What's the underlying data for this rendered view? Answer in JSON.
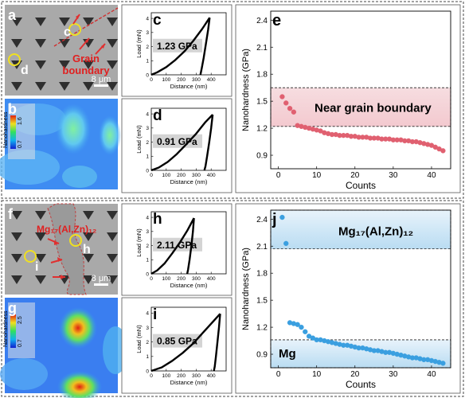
{
  "panels": {
    "a": "a",
    "b": "b",
    "c": "c",
    "d": "d",
    "e": "e",
    "f": "f",
    "g": "g",
    "h": "h",
    "i": "i",
    "j": "j"
  },
  "micro_top": {
    "markers": [
      "c",
      "d"
    ],
    "grain_label_1": "Grain",
    "grain_label_2": "boundary",
    "scale": "8 μm"
  },
  "micro_bottom": {
    "phase_label": "Mg₁₇(Al,Zn)₁₂",
    "markers": [
      "h",
      "i"
    ],
    "scale": "8 μm"
  },
  "maps": {
    "colorbar_label": "Nanohardness",
    "top": {
      "min": "0.7",
      "max": "1.6"
    },
    "bottom": {
      "min": "0.7",
      "max": "2.5"
    }
  },
  "load_curves": {
    "xlabel": "Distance (nm)",
    "ylabel": "Load (mN)",
    "xticks": [
      0,
      100,
      200,
      300,
      400
    ],
    "yticks": [
      0,
      1,
      2,
      3,
      4
    ]
  },
  "chart_data": [
    {
      "type": "line",
      "panel": "c",
      "label": "1.23 GPa",
      "xlim": [
        0,
        500
      ],
      "ylim": [
        0,
        4.4
      ],
      "loading": [
        [
          0,
          0
        ],
        [
          40,
          0.18
        ],
        [
          100,
          0.55
        ],
        [
          160,
          1.05
        ],
        [
          220,
          1.65
        ],
        [
          280,
          2.4
        ],
        [
          340,
          3.25
        ],
        [
          390,
          4.05
        ]
      ],
      "unloading": [
        [
          390,
          4.05
        ],
        [
          380,
          3.2
        ],
        [
          365,
          2.2
        ],
        [
          350,
          1.2
        ],
        [
          338,
          0.5
        ],
        [
          328,
          0
        ]
      ]
    },
    {
      "type": "line",
      "panel": "d",
      "label": "0.91 GPa",
      "xlim": [
        0,
        500
      ],
      "ylim": [
        0,
        4.4
      ],
      "loading": [
        [
          0,
          0
        ],
        [
          50,
          0.2
        ],
        [
          110,
          0.6
        ],
        [
          170,
          1.15
        ],
        [
          230,
          1.8
        ],
        [
          300,
          2.6
        ],
        [
          360,
          3.4
        ],
        [
          410,
          3.95
        ]
      ],
      "unloading": [
        [
          410,
          3.95
        ],
        [
          400,
          3.0
        ],
        [
          387,
          2.0
        ],
        [
          373,
          1.0
        ],
        [
          362,
          0.3
        ],
        [
          355,
          0
        ]
      ]
    },
    {
      "type": "line",
      "panel": "h",
      "label": "2.11 GPa",
      "xlim": [
        0,
        500
      ],
      "ylim": [
        0,
        4.4
      ],
      "loading": [
        [
          0,
          0
        ],
        [
          40,
          0.25
        ],
        [
          90,
          0.75
        ],
        [
          140,
          1.45
        ],
        [
          190,
          2.2
        ],
        [
          240,
          3.05
        ],
        [
          285,
          3.95
        ]
      ],
      "unloading": [
        [
          285,
          3.95
        ],
        [
          278,
          3.0
        ],
        [
          268,
          2.0
        ],
        [
          256,
          1.0
        ],
        [
          246,
          0.3
        ],
        [
          240,
          0
        ]
      ]
    },
    {
      "type": "line",
      "panel": "i",
      "label": "0.85 GPa",
      "xlim": [
        0,
        500
      ],
      "ylim": [
        0,
        4.4
      ],
      "loading": [
        [
          0,
          0
        ],
        [
          70,
          0.25
        ],
        [
          140,
          0.7
        ],
        [
          210,
          1.25
        ],
        [
          280,
          1.9
        ],
        [
          350,
          2.7
        ],
        [
          420,
          3.5
        ],
        [
          460,
          3.95
        ]
      ],
      "unloading": [
        [
          460,
          3.95
        ],
        [
          452,
          3.0
        ],
        [
          442,
          2.0
        ],
        [
          432,
          1.0
        ],
        [
          424,
          0.3
        ],
        [
          418,
          0
        ]
      ]
    },
    {
      "type": "scatter",
      "panel": "e",
      "xlabel": "Counts",
      "ylabel": "Nanohardness (GPa)",
      "xlim": [
        -2,
        45
      ],
      "ylim": [
        0.75,
        2.5
      ],
      "xticks": [
        0,
        10,
        20,
        30,
        40
      ],
      "yticks": [
        0.9,
        1.2,
        1.5,
        1.8,
        2.1,
        2.4
      ],
      "color": "#e06070",
      "band": {
        "y0": 1.22,
        "y1": 1.65,
        "label": "Near grain boundary"
      },
      "y": [
        1.55,
        1.48,
        1.42,
        1.38,
        1.23,
        1.22,
        1.21,
        1.2,
        1.19,
        1.18,
        1.17,
        1.15,
        1.14,
        1.13,
        1.13,
        1.12,
        1.12,
        1.12,
        1.11,
        1.11,
        1.1,
        1.1,
        1.1,
        1.09,
        1.09,
        1.09,
        1.08,
        1.08,
        1.08,
        1.07,
        1.07,
        1.07,
        1.06,
        1.06,
        1.05,
        1.05,
        1.04,
        1.03,
        1.02,
        1.01,
        0.99,
        0.97,
        0.95
      ]
    },
    {
      "type": "scatter",
      "panel": "j",
      "xlabel": "Counts",
      "ylabel": "Nanohardness (GPa)",
      "xlim": [
        -2,
        45
      ],
      "ylim": [
        0.75,
        2.5
      ],
      "xticks": [
        0,
        10,
        20,
        30,
        40
      ],
      "yticks": [
        0.9,
        1.2,
        1.5,
        1.8,
        2.1,
        2.4
      ],
      "color": "#3a9fe0",
      "bands": [
        {
          "y0": 2.07,
          "y1": 2.5,
          "label": "Mg₁₇(Al,Zn)₁₂"
        },
        {
          "y0": 0.75,
          "y1": 1.06,
          "label": "Mg"
        }
      ],
      "y": [
        2.42,
        2.13,
        1.25,
        1.24,
        1.23,
        1.2,
        1.15,
        1.1,
        1.08,
        1.06,
        1.06,
        1.05,
        1.04,
        1.03,
        1.02,
        1.01,
        1.0,
        1.0,
        0.99,
        0.98,
        0.97,
        0.97,
        0.96,
        0.95,
        0.94,
        0.94,
        0.93,
        0.92,
        0.92,
        0.91,
        0.9,
        0.89,
        0.88,
        0.87,
        0.86,
        0.86,
        0.85,
        0.84,
        0.84,
        0.83,
        0.82,
        0.81,
        0.8
      ]
    }
  ]
}
